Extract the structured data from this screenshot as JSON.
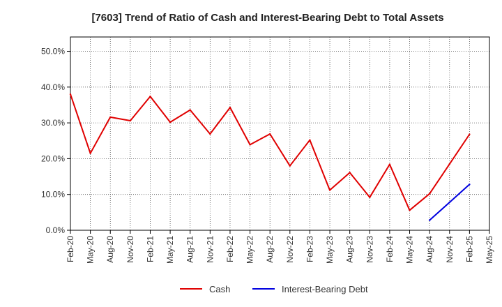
{
  "chart_data": {
    "type": "line",
    "title": "[7603]  Trend of Ratio of Cash and Interest-Bearing Debt to Total Assets",
    "xlabel": "",
    "ylabel": "",
    "ylim": [
      0,
      54
    ],
    "y_ticks": [
      0,
      10,
      20,
      30,
      40,
      50
    ],
    "y_tick_labels": [
      "0.0%",
      "10.0%",
      "20.0%",
      "30.0%",
      "40.0%",
      "50.0%"
    ],
    "categories": [
      "Feb-20",
      "May-20",
      "Aug-20",
      "Nov-20",
      "Feb-21",
      "May-21",
      "Aug-21",
      "Nov-21",
      "Feb-22",
      "May-22",
      "Aug-22",
      "Nov-22",
      "Feb-23",
      "May-23",
      "Aug-23",
      "Nov-23",
      "Feb-24",
      "May-24",
      "Aug-24",
      "Nov-24",
      "Feb-25",
      "May-25"
    ],
    "series": [
      {
        "name": "Cash",
        "color": "#e00000",
        "values": [
          38.0,
          21.5,
          31.6,
          30.6,
          37.4,
          30.2,
          33.6,
          26.9,
          34.3,
          23.9,
          26.9,
          18.0,
          25.2,
          11.2,
          16.1,
          9.2,
          18.4,
          5.6,
          10.2,
          18.5,
          26.8,
          null
        ]
      },
      {
        "name": "Interest-Bearing Debt",
        "color": "#0000e0",
        "values": [
          null,
          null,
          null,
          null,
          null,
          null,
          null,
          null,
          null,
          null,
          null,
          null,
          null,
          null,
          null,
          null,
          null,
          null,
          2.8,
          7.8,
          12.8,
          null
        ]
      }
    ],
    "grid": true,
    "legend_position": "bottom-center"
  }
}
